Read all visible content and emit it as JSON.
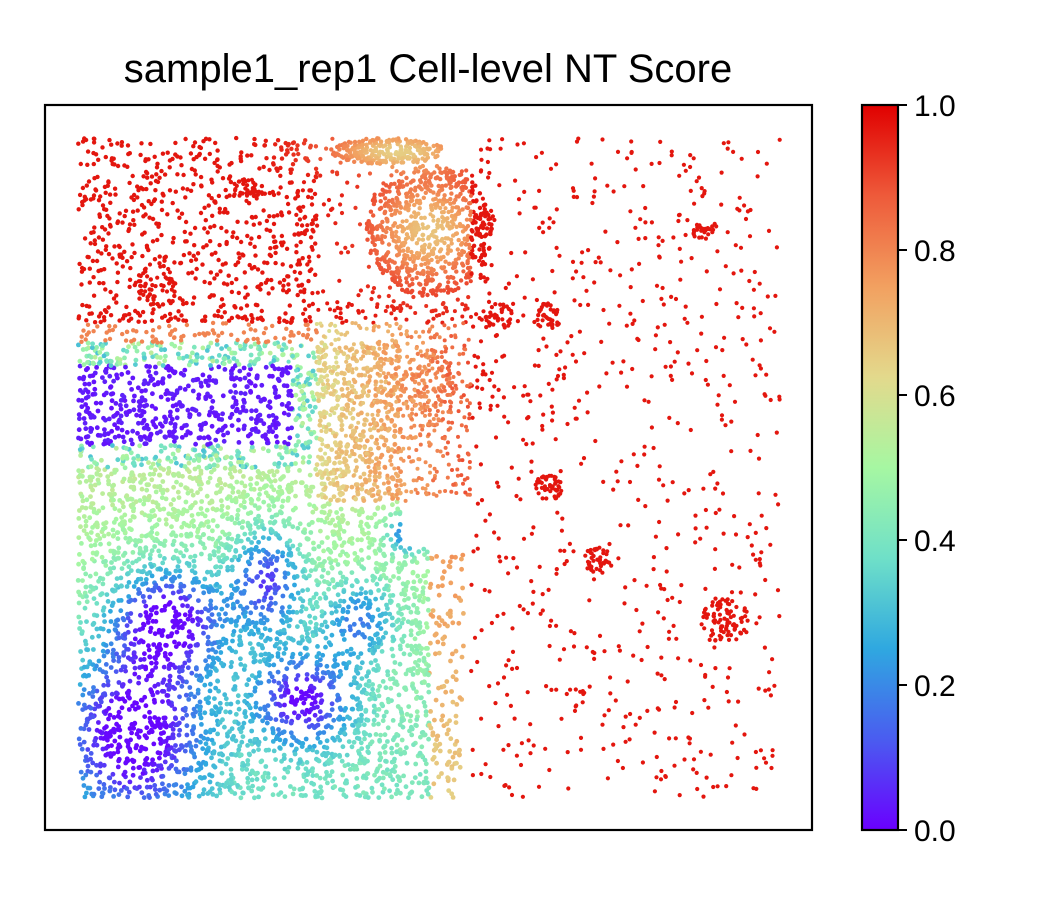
{
  "chart_data": {
    "type": "scatter",
    "title": "sample1_rep1 Cell-level NT Score",
    "xlabel": "",
    "ylabel": "",
    "x_ticks_shown": false,
    "y_ticks_shown": false,
    "grid": false,
    "colormap": "rainbow",
    "colormap_stops": [
      "#6a00ff",
      "#4a5cf0",
      "#2fa8e0",
      "#6fe0c8",
      "#a6f7a2",
      "#e3d98c",
      "#f2a060",
      "#ee5a3a",
      "#e00000"
    ],
    "colorbar": {
      "range": [
        0.0,
        1.0
      ],
      "ticks": [
        0.0,
        0.2,
        0.4,
        0.6,
        0.8,
        1.0
      ],
      "tick_labels": [
        "0.0",
        "0.2",
        "0.4",
        "0.6",
        "0.8",
        "1.0"
      ],
      "placement": "right"
    },
    "point_groups": [
      {
        "region": "upper-left dense band",
        "x_range": [
          0.0,
          0.33
        ],
        "y_range": [
          0.72,
          1.0
        ],
        "nt_score": 0.97
      },
      {
        "region": "upper-middle cluster",
        "x_range": [
          0.38,
          0.6
        ],
        "y_range": [
          0.75,
          0.98
        ],
        "nt_score": 0.7
      },
      {
        "region": "middle transition cloud",
        "x_range": [
          0.3,
          0.55
        ],
        "y_range": [
          0.5,
          0.75
        ],
        "nt_score": 0.75
      },
      {
        "region": "upper-left low block",
        "x_range": [
          0.0,
          0.33
        ],
        "y_range": [
          0.52,
          0.68
        ],
        "nt_score": 0.03
      },
      {
        "region": "lower-left mixed block",
        "x_range": [
          0.0,
          0.55
        ],
        "y_range": [
          0.0,
          0.52
        ],
        "nt_score": 0.15
      },
      {
        "region": "right sparse field",
        "x_range": [
          0.55,
          1.0
        ],
        "y_range": [
          0.0,
          1.0
        ],
        "nt_score": 0.98
      }
    ]
  }
}
